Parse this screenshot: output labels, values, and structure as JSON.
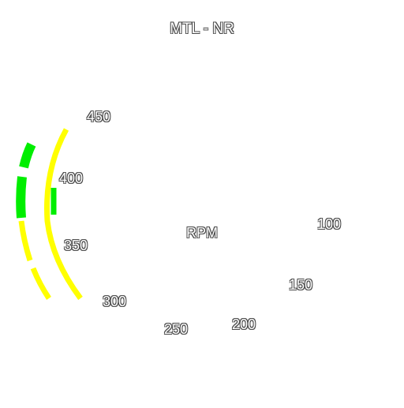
{
  "instrument": {
    "title": "MTL - NR",
    "unit": "RPM",
    "scale_labels": [
      "450",
      "400",
      "350",
      "300",
      "250",
      "200",
      "150",
      "100"
    ],
    "colors": {
      "normal_band": "#00ee00",
      "caution_band": "#ffff00",
      "label_text": "#ffffff",
      "label_outline": "#4a4a4a"
    }
  }
}
